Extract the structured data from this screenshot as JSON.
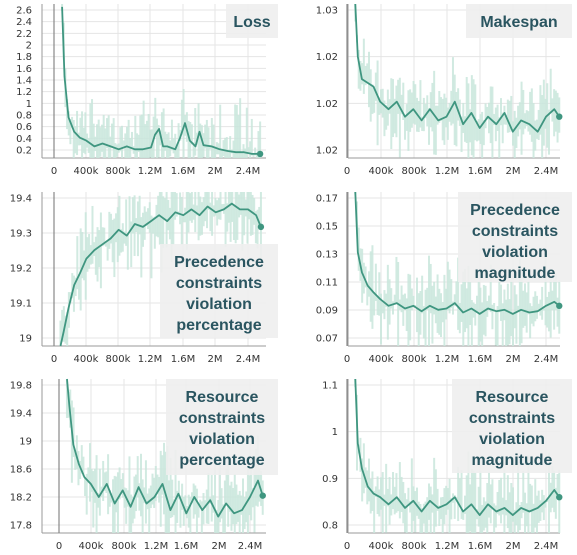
{
  "colors": {
    "line": "#3f9680",
    "band": "#c9e6dc",
    "grid": "#e5e5e5",
    "axis": "#9a9a9a",
    "title_bg": "#eeeeee",
    "title_text": "#2a5560"
  },
  "chart_data": [
    {
      "id": "loss",
      "type": "line",
      "title_lines": [
        "Loss"
      ],
      "x_ticks": [
        "0",
        "400k",
        "800k",
        "1.2M",
        "1.6M",
        "2M",
        "2.4M"
      ],
      "y_ticks": [
        "0.2",
        "0.4",
        "0.6",
        "0.8",
        "1",
        "1.2",
        "1.4",
        "1.6",
        "1.8",
        "2",
        "2.2",
        "2.4",
        "2.6"
      ],
      "xlim": [
        0,
        2600000
      ],
      "ylim": [
        0.1,
        2.75
      ],
      "series": [
        {
          "x": [
            100000,
            130000,
            180000,
            250000,
            320000,
            400000,
            500000,
            600000,
            700000,
            800000,
            900000,
            1000000,
            1100000,
            1200000,
            1250000,
            1300000,
            1350000,
            1400000,
            1500000,
            1560000,
            1620000,
            1680000,
            1750000,
            1800000,
            1850000,
            1950000,
            2050000,
            2150000,
            2250000,
            2350000,
            2450000,
            2550000
          ],
          "y": [
            2.7,
            1.5,
            0.8,
            0.55,
            0.45,
            0.4,
            0.3,
            0.35,
            0.3,
            0.25,
            0.3,
            0.25,
            0.25,
            0.28,
            0.5,
            0.6,
            0.3,
            0.3,
            0.25,
            0.45,
            0.7,
            0.4,
            0.3,
            0.55,
            0.32,
            0.3,
            0.25,
            0.22,
            0.2,
            0.2,
            0.17,
            0.17
          ]
        }
      ]
    },
    {
      "id": "makespan",
      "type": "line",
      "title_lines": [
        "Makespan"
      ],
      "x_ticks": [
        "0",
        "400k",
        "800k",
        "1.2M",
        "1.6M",
        "2M",
        "2.4M"
      ],
      "y_ticks": [
        "1.02",
        "1.02",
        "1.02",
        "1.03"
      ],
      "xlim": [
        0,
        2600000
      ],
      "ylim": [
        1.005,
        1.046
      ],
      "series": [
        {
          "x": [
            100000,
            130000,
            180000,
            250000,
            320000,
            400000,
            500000,
            600000,
            700000,
            800000,
            900000,
            1000000,
            1100000,
            1200000,
            1300000,
            1400000,
            1500000,
            1600000,
            1700000,
            1800000,
            1900000,
            2000000,
            2100000,
            2200000,
            2300000,
            2400000,
            2500000,
            2560000
          ],
          "y": [
            1.046,
            1.032,
            1.026,
            1.025,
            1.024,
            1.02,
            1.018,
            1.02,
            1.016,
            1.018,
            1.015,
            1.018,
            1.015,
            1.016,
            1.02,
            1.014,
            1.017,
            1.013,
            1.016,
            1.014,
            1.017,
            1.012,
            1.015,
            1.014,
            1.012,
            1.016,
            1.018,
            1.016
          ]
        }
      ]
    },
    {
      "id": "prec_pct",
      "type": "line",
      "title_lines": [
        "Precedence",
        "constraints",
        "violation",
        "percentage"
      ],
      "x_ticks": [
        "0",
        "400k",
        "800k",
        "1.2M",
        "1.6M",
        "2M",
        "2.4M"
      ],
      "y_ticks": [
        "19",
        "19.1",
        "19.2",
        "19.3",
        "19.4"
      ],
      "xlim": [
        0,
        2600000
      ],
      "ylim": [
        18.95,
        19.48
      ],
      "series": [
        {
          "x": [
            80000,
            120000,
            180000,
            250000,
            320000,
            400000,
            500000,
            600000,
            700000,
            800000,
            900000,
            1000000,
            1100000,
            1200000,
            1300000,
            1400000,
            1500000,
            1600000,
            1700000,
            1800000,
            1900000,
            2000000,
            2100000,
            2200000,
            2300000,
            2400000,
            2500000,
            2560000
          ],
          "y": [
            18.95,
            19.0,
            19.08,
            19.16,
            19.2,
            19.25,
            19.28,
            19.3,
            19.32,
            19.35,
            19.33,
            19.37,
            19.36,
            19.38,
            19.4,
            19.38,
            19.41,
            19.4,
            19.42,
            19.4,
            19.43,
            19.41,
            19.42,
            19.44,
            19.42,
            19.42,
            19.4,
            19.36
          ]
        }
      ]
    },
    {
      "id": "prec_mag",
      "type": "line",
      "title_lines": [
        "Precedence",
        "constraints",
        "violation",
        "magnitude"
      ],
      "x_ticks": [
        "0",
        "400k",
        "800k",
        "1.2M",
        "1.6M",
        "2M",
        "2.4M"
      ],
      "y_ticks": [
        "0.07",
        "0.09",
        "0.11",
        "0.13",
        "0.15",
        "0.17"
      ],
      "xlim": [
        0,
        2600000
      ],
      "ylim": [
        0.06,
        0.175
      ],
      "series": [
        {
          "x": [
            100000,
            130000,
            180000,
            250000,
            320000,
            400000,
            500000,
            600000,
            700000,
            800000,
            900000,
            1000000,
            1100000,
            1200000,
            1300000,
            1400000,
            1500000,
            1600000,
            1700000,
            1800000,
            1900000,
            2000000,
            2100000,
            2200000,
            2300000,
            2400000,
            2500000,
            2560000
          ],
          "y": [
            0.175,
            0.13,
            0.115,
            0.105,
            0.1,
            0.095,
            0.09,
            0.092,
            0.088,
            0.09,
            0.086,
            0.09,
            0.087,
            0.088,
            0.092,
            0.085,
            0.088,
            0.084,
            0.088,
            0.086,
            0.087,
            0.084,
            0.087,
            0.085,
            0.086,
            0.09,
            0.093,
            0.09
          ]
        }
      ]
    },
    {
      "id": "res_pct",
      "type": "line",
      "title_lines": [
        "Resource",
        "constraints",
        "violation",
        "percentage"
      ],
      "x_ticks": [
        "0",
        "400k",
        "800k",
        "1.2M",
        "1.6M",
        "2M",
        "2.4M"
      ],
      "y_ticks": [
        "17.8",
        "18.2",
        "18.6",
        "19",
        "19.4",
        "19.8"
      ],
      "xlim": [
        0,
        2600000
      ],
      "ylim": [
        17.65,
        20.0
      ],
      "series": [
        {
          "x": [
            100000,
            130000,
            180000,
            250000,
            320000,
            400000,
            500000,
            600000,
            700000,
            800000,
            900000,
            1000000,
            1100000,
            1200000,
            1300000,
            1400000,
            1500000,
            1600000,
            1700000,
            1800000,
            1900000,
            2000000,
            2100000,
            2200000,
            2300000,
            2400000,
            2500000,
            2560000
          ],
          "y": [
            20.0,
            19.6,
            19.0,
            18.7,
            18.5,
            18.4,
            18.2,
            18.4,
            18.1,
            18.3,
            18.05,
            18.35,
            18.1,
            18.2,
            18.4,
            18.0,
            18.25,
            17.95,
            18.2,
            18.0,
            18.15,
            17.9,
            18.1,
            17.95,
            18.0,
            18.2,
            18.45,
            18.22
          ]
        }
      ]
    },
    {
      "id": "res_mag",
      "type": "line",
      "title_lines": [
        "Resource",
        "constraints",
        "violation",
        "magnitude"
      ],
      "x_ticks": [
        "0",
        "400k",
        "800k",
        "1.2M",
        "1.6M",
        "2M",
        "2.4M"
      ],
      "y_ticks": [
        "0.8",
        "0.9",
        "1",
        "1.1"
      ],
      "xlim": [
        0,
        2600000
      ],
      "ylim": [
        0.75,
        1.18
      ],
      "series": [
        {
          "x": [
            100000,
            130000,
            180000,
            250000,
            320000,
            400000,
            500000,
            600000,
            700000,
            800000,
            900000,
            1000000,
            1100000,
            1200000,
            1300000,
            1400000,
            1500000,
            1600000,
            1700000,
            1800000,
            1900000,
            2000000,
            2100000,
            2200000,
            2300000,
            2400000,
            2500000,
            2560000
          ],
          "y": [
            1.18,
            1.0,
            0.93,
            0.88,
            0.86,
            0.85,
            0.83,
            0.85,
            0.82,
            0.84,
            0.81,
            0.84,
            0.82,
            0.83,
            0.85,
            0.81,
            0.83,
            0.8,
            0.83,
            0.81,
            0.82,
            0.8,
            0.82,
            0.81,
            0.82,
            0.84,
            0.87,
            0.85
          ]
        }
      ]
    }
  ]
}
